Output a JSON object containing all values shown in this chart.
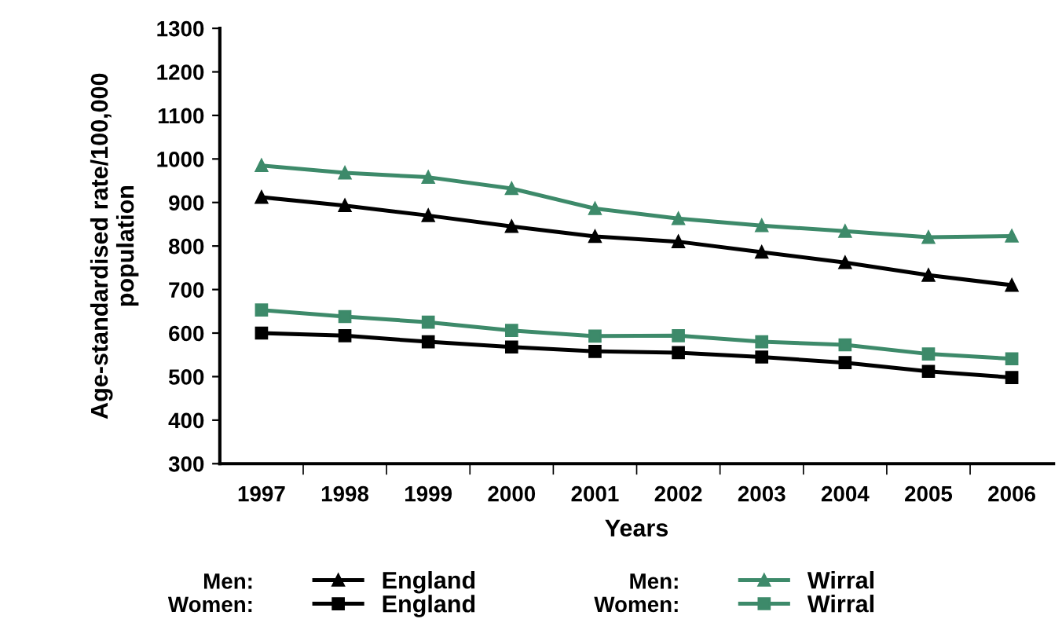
{
  "chart_data": {
    "type": "line",
    "xlabel": "Years",
    "ylabel": "Age-standardised rate/100,000\npopulation",
    "categories": [
      "1997",
      "1998",
      "1999",
      "2000",
      "2001",
      "2002",
      "2003",
      "2004",
      "2005",
      "2006"
    ],
    "series": [
      {
        "name": "England",
        "color": "#000000",
        "marker": "triangle",
        "values": [
          912,
          893,
          870,
          845,
          822,
          810,
          786,
          762,
          733,
          710
        ]
      },
      {
        "name": "England",
        "color": "#000000",
        "marker": "square",
        "values": [
          600,
          594,
          580,
          568,
          558,
          555,
          545,
          532,
          512,
          498
        ]
      },
      {
        "name": "Wirral",
        "color": "#3d8a6a",
        "marker": "triangle",
        "values": [
          985,
          968,
          958,
          932,
          886,
          863,
          847,
          834,
          820,
          823
        ]
      },
      {
        "name": "Wirral",
        "color": "#3d8a6a",
        "marker": "square",
        "values": [
          653,
          638,
          625,
          606,
          593,
          594,
          580,
          573,
          552,
          541
        ]
      }
    ],
    "annotations": [
      "Men:",
      "Women:",
      "Men:",
      "Women:"
    ],
    "ylim": [
      300,
      1300
    ],
    "yticks": [
      300,
      400,
      500,
      600,
      700,
      800,
      900,
      1000,
      1100,
      1200,
      1300
    ],
    "grid": false,
    "legend": "bottom",
    "line_style": "solid"
  }
}
